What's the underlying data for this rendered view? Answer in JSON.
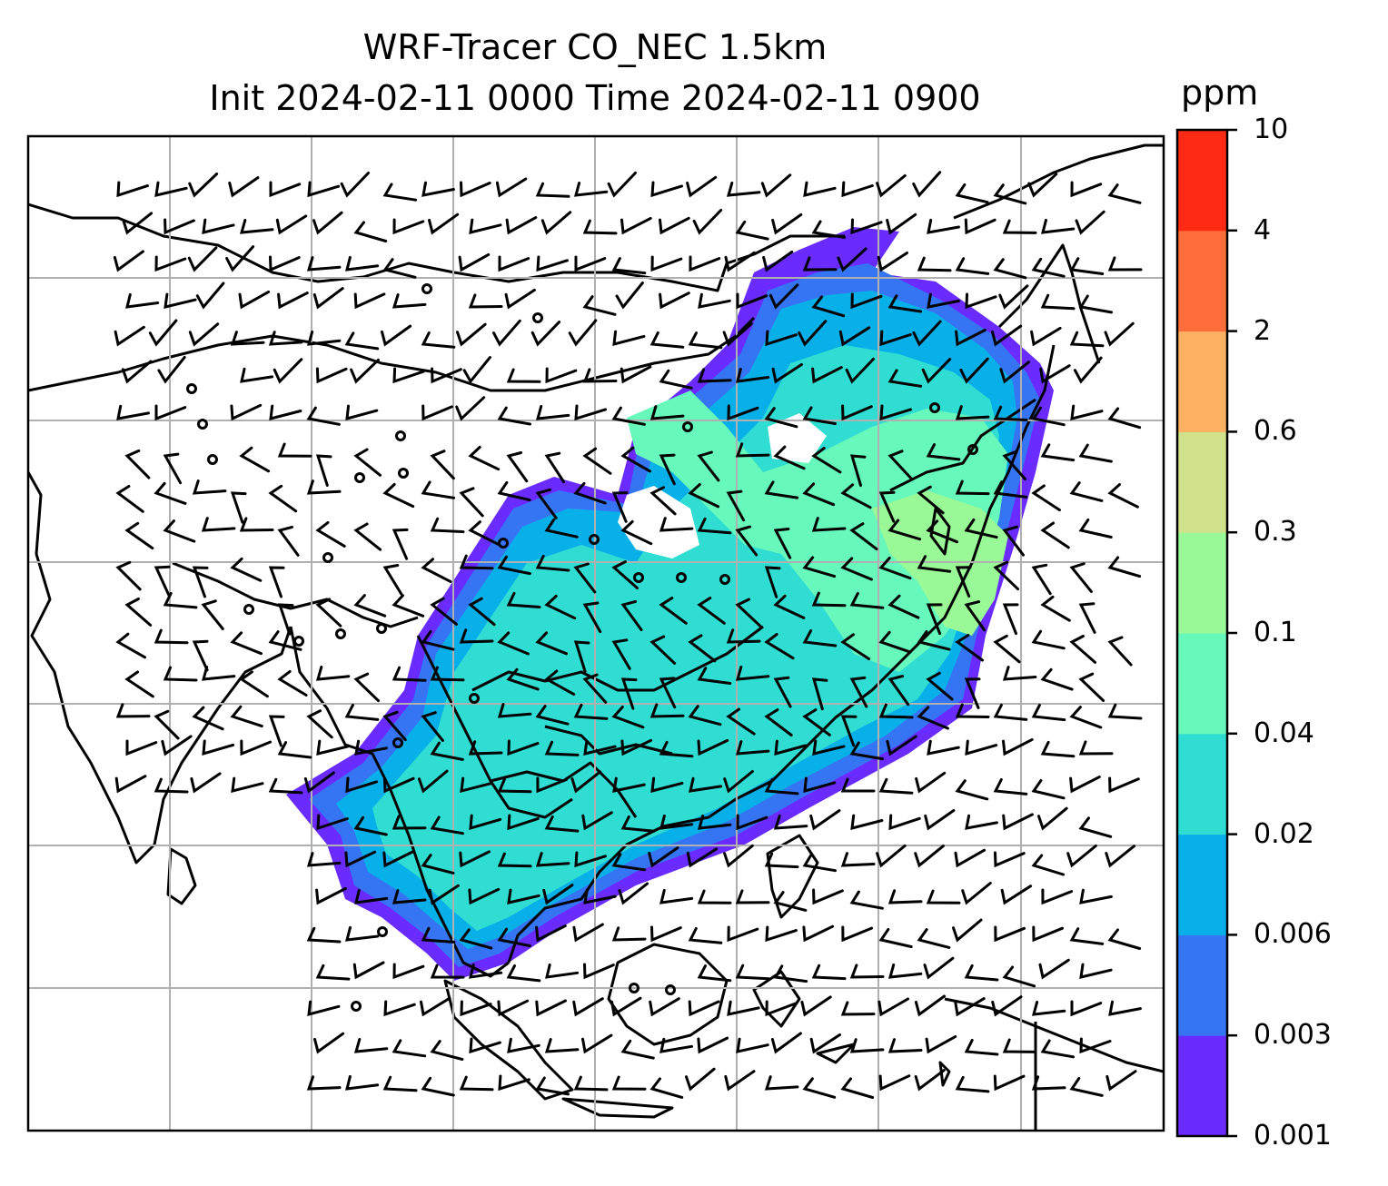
{
  "title": {
    "line1": "WRF-Tracer CO_NEC 1.5km",
    "line2": "Init 2024-02-11 0000 Time 2024-02-11 0900"
  },
  "colorbar": {
    "unit": "ppm",
    "levels": [
      "0.001",
      "0.003",
      "0.006",
      "0.02",
      "0.04",
      "0.1",
      "0.3",
      "0.6",
      "2",
      "4",
      "10"
    ],
    "colors": [
      "#6a2bff",
      "#3575f3",
      "#08b0ea",
      "#30ddd2",
      "#67f9bc",
      "#99f996",
      "#cfe18a",
      "#feb163",
      "#ff6d3a",
      "#ff2a14"
    ]
  },
  "map": {
    "gridlines": true,
    "coastline_color": "#000000",
    "gridline_color": "#b0b0b0"
  },
  "chart_data": {
    "type": "heatmap",
    "field": "CO_NEC tracer concentration with wind barbs",
    "title": "WRF-Tracer CO_NEC 1.5km",
    "subtitle": "Init 2024-02-11 0000 Time 2024-02-11 0900",
    "colorbar_label": "ppm",
    "levels": [
      0.001,
      0.003,
      0.006,
      0.02,
      0.04,
      0.1,
      0.3,
      0.6,
      2,
      4,
      10
    ],
    "grid": true
  }
}
